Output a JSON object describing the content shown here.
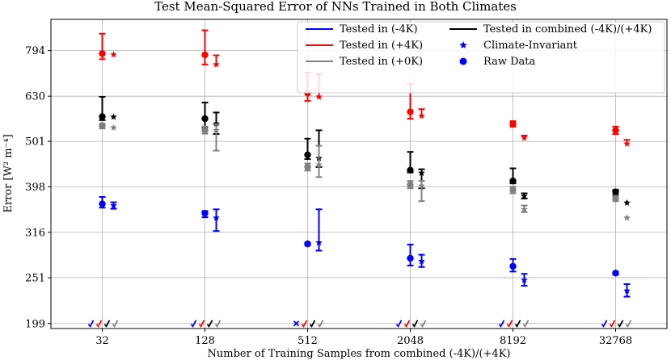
{
  "chart_data": {
    "type": "scatter",
    "title": "Test Mean-Squared Error of NNs Trained in Both Climates",
    "xlabel": "Number of Training Samples from combined (-4K)/(+4K)",
    "ylabel": "Error [W² m⁻⁴]",
    "y_scale": "log",
    "ylim": [
      194,
      930
    ],
    "x_categories": [
      "32",
      "128",
      "512",
      "2048",
      "8192",
      "32768"
    ],
    "y_ticks": [
      199,
      251,
      316,
      398,
      501,
      630,
      794
    ],
    "grid": true,
    "legend_position": "top-right",
    "legend": [
      {
        "label": "Tested in (-4K)",
        "kind": "line",
        "color": "#0000ff"
      },
      {
        "label": "Tested in combined (-4K)/(+4K)",
        "kind": "line",
        "color": "#000000"
      },
      {
        "label": "Tested in (+4K)",
        "kind": "line",
        "color": "#ff0000"
      },
      {
        "label": "Climate-Invariant",
        "kind": "star",
        "color": "#0000ff"
      },
      {
        "label": "Tested in (+0K)",
        "kind": "line",
        "color": "#808080"
      },
      {
        "label": "Raw Data",
        "kind": "circle",
        "color": "#0000ff"
      }
    ],
    "series": [
      {
        "id": "raw_minus4K",
        "marker": "circle",
        "color": "#0000ff",
        "offset": 0,
        "y": [
          365,
          348,
          298,
          277,
          266,
          257
        ],
        "ylow": [
          358,
          341,
          296,
          267,
          259,
          255
        ],
        "yhigh": [
          378,
          352,
          300,
          297,
          276,
          258
        ]
      },
      {
        "id": "raw_plus4K",
        "marker": "circle",
        "color": "#ff0000",
        "offset": 0,
        "y": [
          782,
          777,
          640,
          582,
          548,
          530
        ],
        "ylow": [
          760,
          740,
          615,
          562,
          540,
          520
        ],
        "yhigh": [
          865,
          880,
          710,
          670,
          555,
          540
        ]
      },
      {
        "id": "raw_combined",
        "marker": "circle",
        "color": "#000000",
        "offset": 0,
        "y": [
          568,
          562,
          468,
          433,
          410,
          388
        ],
        "ylow": [
          558,
          538,
          458,
          428,
          405,
          382
        ],
        "yhigh": [
          628,
          610,
          508,
          475,
          437,
          392
        ]
      },
      {
        "id": "raw_plus0K",
        "marker": "circle",
        "color": "#808080",
        "offset": 0,
        "y": [
          543,
          530,
          440,
          402,
          392,
          375
        ],
        "ylow": [
          535,
          521,
          432,
          395,
          385,
          370
        ],
        "yhigh": [
          548,
          540,
          448,
          410,
          398,
          380
        ]
      },
      {
        "id": "ci_minus4K",
        "marker": "star",
        "color": "#0000ff",
        "offset": 1,
        "y": [
          362,
          340,
          300,
          273,
          248,
          235
        ],
        "ylow": [
          356,
          318,
          288,
          265,
          241,
          228
        ],
        "yhigh": [
          368,
          355,
          355,
          282,
          256,
          243
        ]
      },
      {
        "id": "ci_plus4K",
        "marker": "star",
        "color": "#ff0000",
        "offset": 1,
        "y": [
          778,
          740,
          628,
          570,
          510,
          495
        ],
        "ylow": null,
        "yhigh": [
          null,
          775,
          705,
          590,
          516,
          505
        ]
      },
      {
        "id": "ci_combined",
        "marker": "star",
        "color": "#000000",
        "offset": 1,
        "y": [
          567,
          548,
          460,
          427,
          380,
          367
        ],
        "ylow": [
          null,
          520,
          440,
          395,
          375,
          null
        ],
        "yhigh": [
          null,
          580,
          530,
          435,
          385,
          null
        ]
      },
      {
        "id": "ci_plus0K",
        "marker": "star",
        "color": "#808080",
        "offset": 1,
        "y": [
          537,
          530,
          445,
          400,
          355,
          340
        ],
        "ylow": [
          null,
          478,
          418,
          370,
          350,
          null
        ],
        "yhigh": [
          null,
          546,
          490,
          410,
          362,
          null
        ]
      }
    ],
    "baseline_glyph_series": [
      {
        "color": "#0000ff",
        "glyph": "✓",
        "cross_at": "512"
      },
      {
        "color": "#ff0000",
        "glyph": "✓"
      },
      {
        "color": "#000000",
        "glyph": "✓"
      },
      {
        "color": "#808080",
        "glyph": "✓"
      }
    ]
  }
}
